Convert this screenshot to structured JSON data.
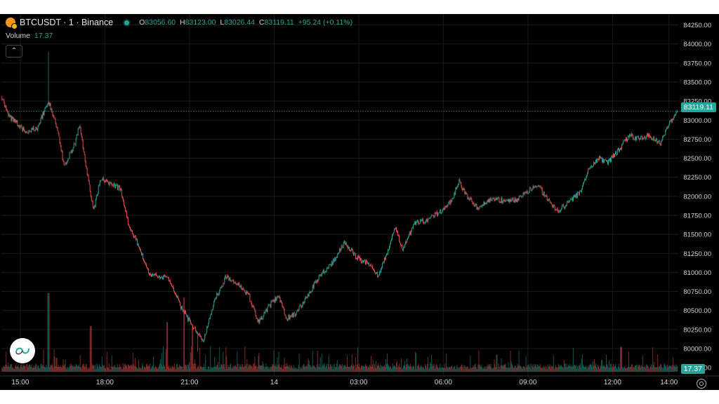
{
  "header": {
    "symbol": "BTCUSDT · 1 · Binance",
    "ohlc": [
      {
        "key": "O",
        "value": "83056.60"
      },
      {
        "key": "H",
        "value": "83123.00"
      },
      {
        "key": "L",
        "value": "83026.44"
      },
      {
        "key": "C",
        "value": "83119.11"
      }
    ],
    "change": "+95.24 (+0.11%)"
  },
  "volume_label": "Volume",
  "volume_value": "17.37",
  "last_price_label": "83119.11",
  "colors": {
    "up": "#26a69a",
    "down": "#ef5350",
    "background": "#000000",
    "text": "#d1d4dc",
    "grid": "#1b1b1b"
  },
  "icons": {
    "collapse": "chevron-up-icon",
    "logo": "tradingview-logo",
    "settings": "gear-icon"
  },
  "chart_data": {
    "type": "candlestick",
    "title": "BTCUSDT · 1 · Binance",
    "y_ticks": [
      "84250.00",
      "84000.00",
      "83750.00",
      "83500.00",
      "83250.00",
      "83000.00",
      "82750.00",
      "82500.00",
      "82250.00",
      "82000.00",
      "81750.00",
      "81500.00",
      "81250.00",
      "81000.00",
      "80750.00",
      "80500.00",
      "80250.00",
      "80000.00",
      "79750.00"
    ],
    "ylim": [
      79650,
      84320
    ],
    "x_ticks": [
      "15:00",
      "18:00",
      "21:00",
      "14",
      "03:00",
      "06:00",
      "09:00",
      "12:00",
      "14:00"
    ],
    "x_hours": [
      15,
      18,
      21,
      24,
      27,
      30,
      33,
      36,
      38
    ],
    "x_range_hours": [
      14.33,
      38.33
    ],
    "last_price": 83119.11,
    "price_path": [
      {
        "t": 14.35,
        "p": 83300
      },
      {
        "t": 14.6,
        "p": 83050
      },
      {
        "t": 15.2,
        "p": 82850
      },
      {
        "t": 15.6,
        "p": 82900
      },
      {
        "t": 16.0,
        "p": 83250
      },
      {
        "t": 16.3,
        "p": 82900
      },
      {
        "t": 16.55,
        "p": 82400
      },
      {
        "t": 16.95,
        "p": 82700
      },
      {
        "t": 17.1,
        "p": 82950
      },
      {
        "t": 17.35,
        "p": 82350
      },
      {
        "t": 17.6,
        "p": 81800
      },
      {
        "t": 17.85,
        "p": 82250
      },
      {
        "t": 18.2,
        "p": 82150
      },
      {
        "t": 18.55,
        "p": 82100
      },
      {
        "t": 18.85,
        "p": 81600
      },
      {
        "t": 19.2,
        "p": 81350
      },
      {
        "t": 19.6,
        "p": 80950
      },
      {
        "t": 20.0,
        "p": 80950
      },
      {
        "t": 20.3,
        "p": 80900
      },
      {
        "t": 20.7,
        "p": 80550
      },
      {
        "t": 21.1,
        "p": 80300
      },
      {
        "t": 21.5,
        "p": 80100
      },
      {
        "t": 21.9,
        "p": 80650
      },
      {
        "t": 22.3,
        "p": 80950
      },
      {
        "t": 22.7,
        "p": 80850
      },
      {
        "t": 23.1,
        "p": 80700
      },
      {
        "t": 23.45,
        "p": 80350
      },
      {
        "t": 23.8,
        "p": 80550
      },
      {
        "t": 24.15,
        "p": 80700
      },
      {
        "t": 24.45,
        "p": 80400
      },
      {
        "t": 24.75,
        "p": 80450
      },
      {
        "t": 25.2,
        "p": 80700
      },
      {
        "t": 25.6,
        "p": 80950
      },
      {
        "t": 26.1,
        "p": 81150
      },
      {
        "t": 26.5,
        "p": 81400
      },
      {
        "t": 26.9,
        "p": 81200
      },
      {
        "t": 27.4,
        "p": 81100
      },
      {
        "t": 27.7,
        "p": 80950
      },
      {
        "t": 28.0,
        "p": 81250
      },
      {
        "t": 28.3,
        "p": 81600
      },
      {
        "t": 28.55,
        "p": 81300
      },
      {
        "t": 29.0,
        "p": 81650
      },
      {
        "t": 29.5,
        "p": 81700
      },
      {
        "t": 29.9,
        "p": 81800
      },
      {
        "t": 30.3,
        "p": 81950
      },
      {
        "t": 30.55,
        "p": 82200
      },
      {
        "t": 30.85,
        "p": 82000
      },
      {
        "t": 31.2,
        "p": 81850
      },
      {
        "t": 31.6,
        "p": 81950
      },
      {
        "t": 32.1,
        "p": 81950
      },
      {
        "t": 32.6,
        "p": 81950
      },
      {
        "t": 32.95,
        "p": 82050
      },
      {
        "t": 33.35,
        "p": 82150
      },
      {
        "t": 33.7,
        "p": 81950
      },
      {
        "t": 34.05,
        "p": 81800
      },
      {
        "t": 34.5,
        "p": 81950
      },
      {
        "t": 34.85,
        "p": 82050
      },
      {
        "t": 35.15,
        "p": 82350
      },
      {
        "t": 35.5,
        "p": 82500
      },
      {
        "t": 35.85,
        "p": 82450
      },
      {
        "t": 36.2,
        "p": 82600
      },
      {
        "t": 36.6,
        "p": 82800
      },
      {
        "t": 36.95,
        "p": 82750
      },
      {
        "t": 37.3,
        "p": 82800
      },
      {
        "t": 37.7,
        "p": 82700
      },
      {
        "t": 38.0,
        "p": 82950
      },
      {
        "t": 38.28,
        "p": 83119
      }
    ],
    "spikes": [
      {
        "t": 16.0,
        "high": 83900
      },
      {
        "t": 21.3,
        "low": 79960
      }
    ],
    "volume_spikes": [
      {
        "t": 16.0,
        "level": 0.95
      },
      {
        "t": 17.5,
        "level": 0.55
      },
      {
        "t": 20.2,
        "level": 0.6
      },
      {
        "t": 20.8,
        "level": 0.9
      },
      {
        "t": 21.1,
        "level": 0.55
      },
      {
        "t": 36.3,
        "level": 0.3
      }
    ]
  }
}
